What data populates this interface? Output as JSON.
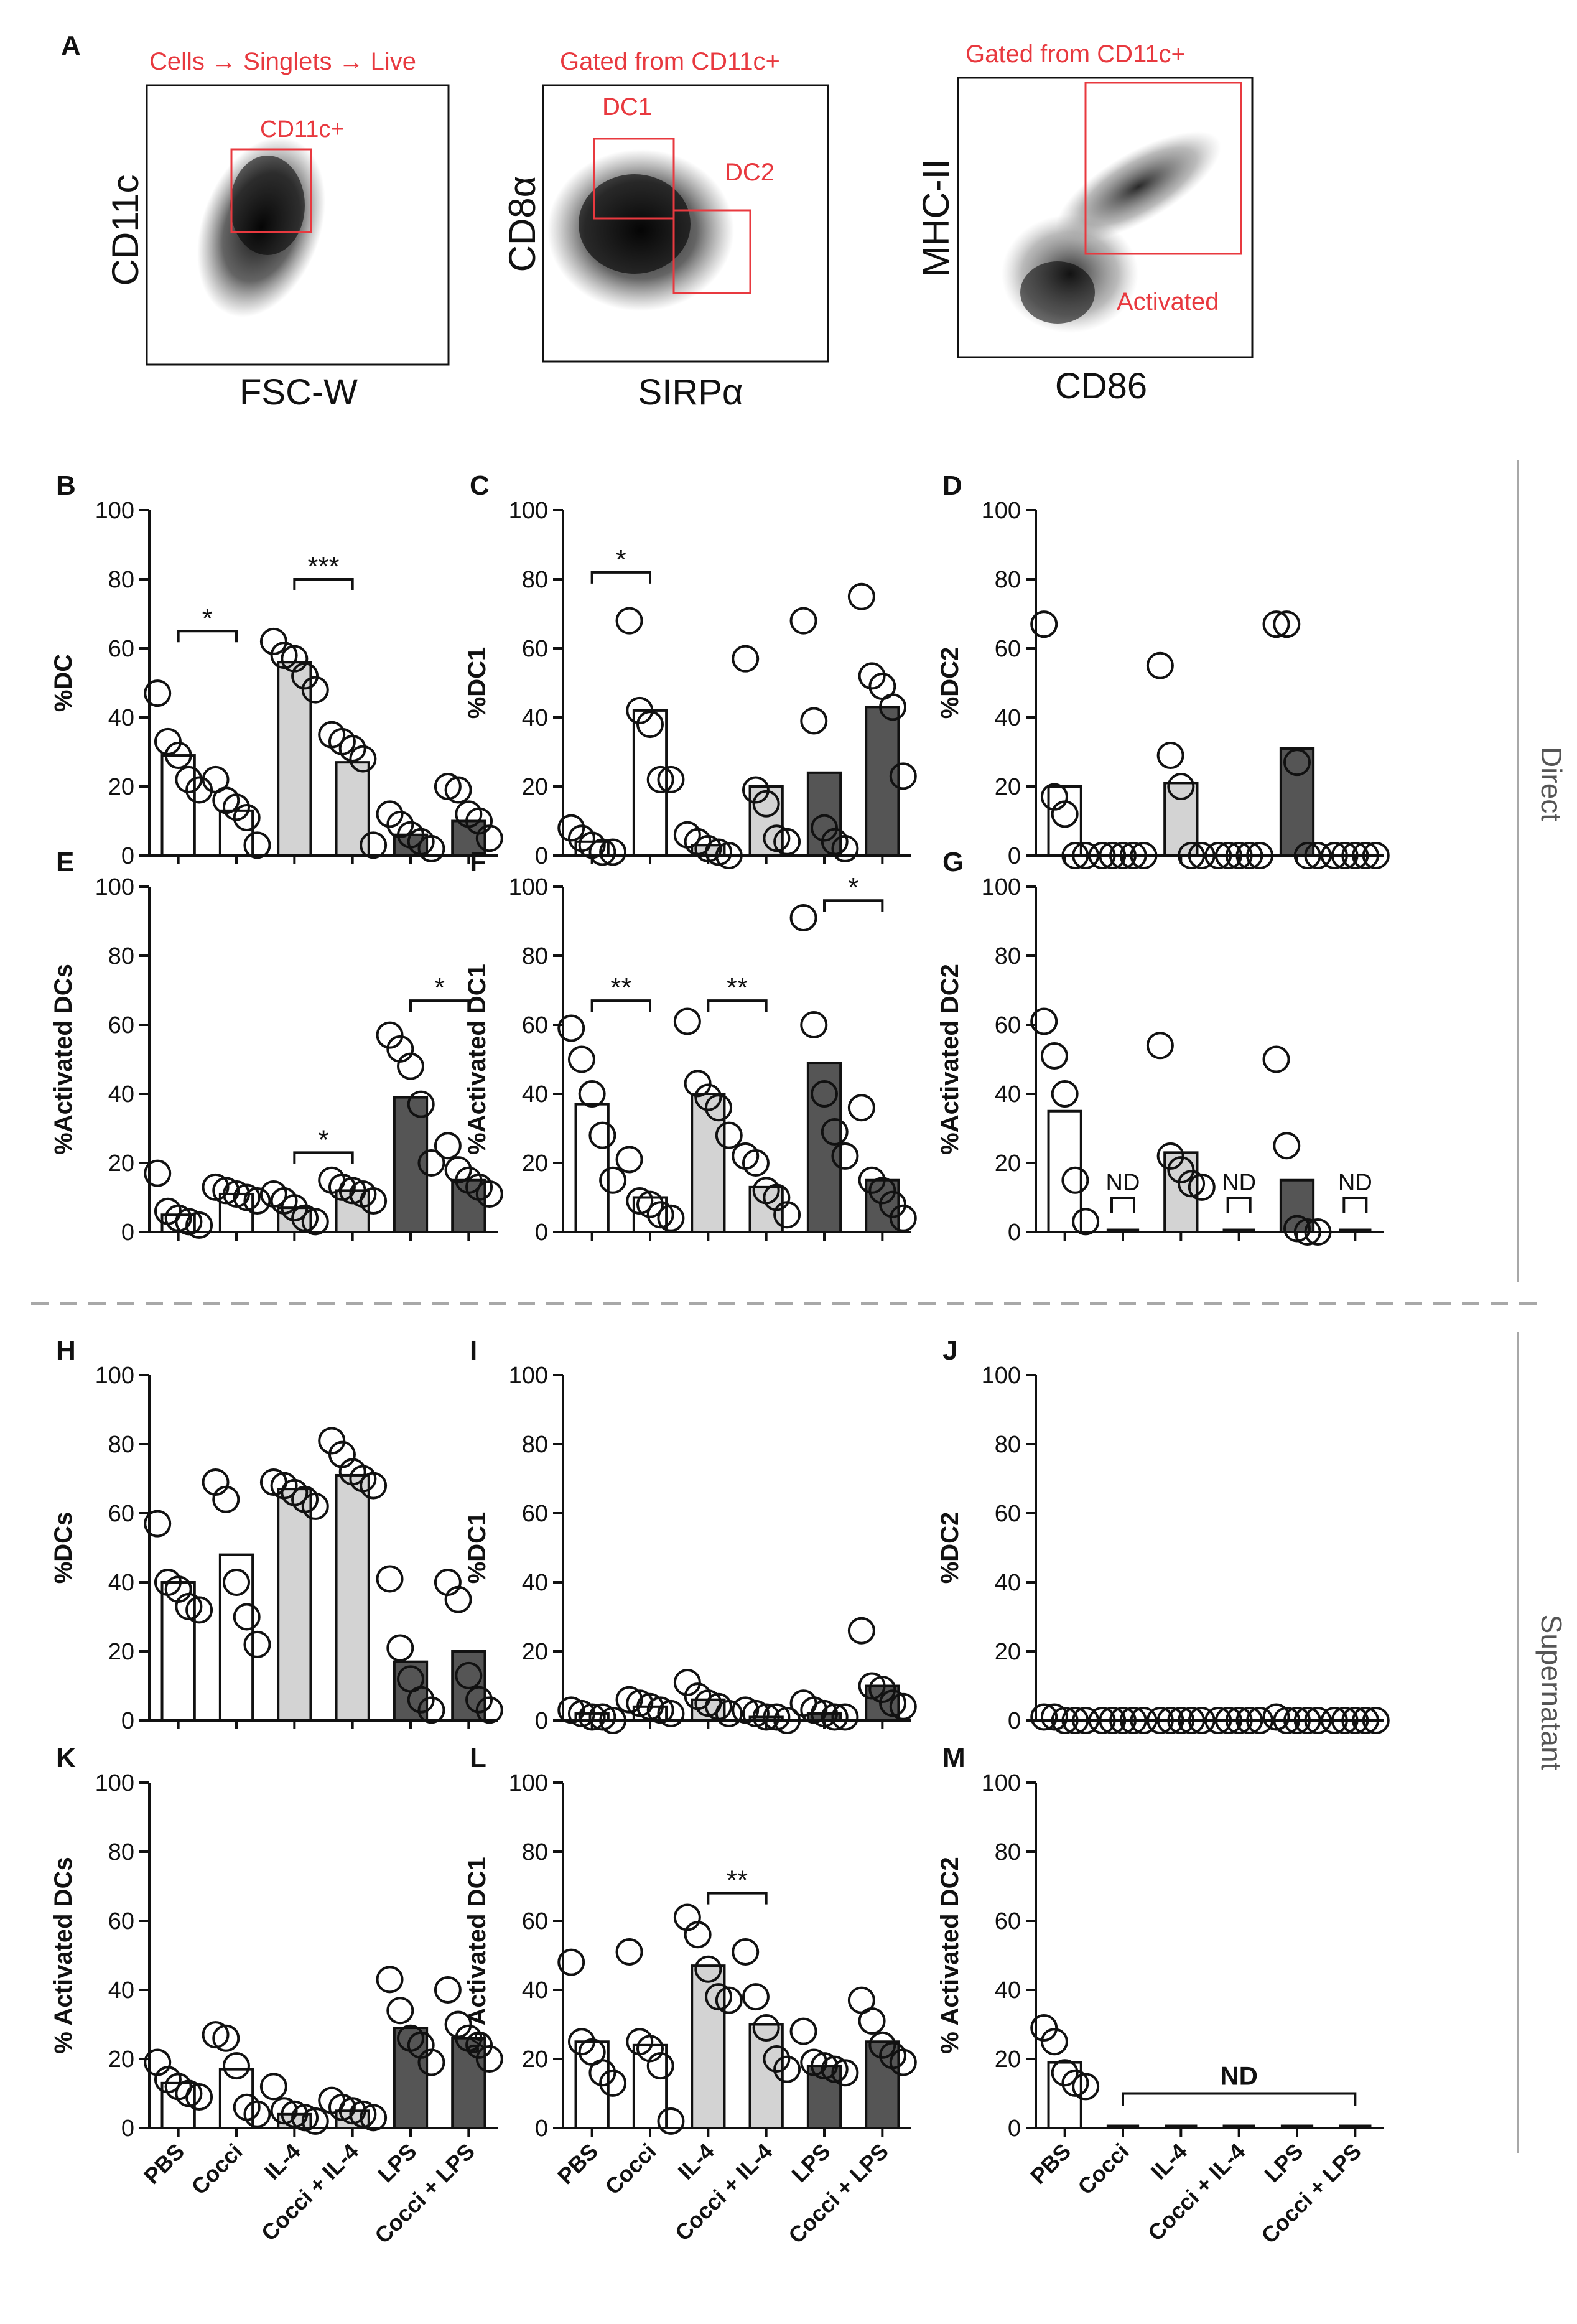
{
  "colors": {
    "accent": "#e8393f",
    "white_bar": "#ffffff",
    "light_bar": "#d3d3d3",
    "dark_bar": "#555555",
    "divider": "#a8a8a8"
  },
  "section_labels": {
    "direct": "Direct",
    "supernatant": "Supernatant"
  },
  "flow_panels": [
    {
      "letter": "A",
      "title": "Cells → Singlets → Live",
      "gate_label": "CD11c+",
      "ylabel": "CD11c",
      "xlabel": "FSC-W"
    },
    {
      "letter": "",
      "title": "Gated from CD11c+",
      "gate_label": "DC1",
      "gate_label_2": "DC2",
      "ylabel": "CD8α",
      "xlabel": "SIRPα"
    },
    {
      "letter": "",
      "title": "Gated from CD11c+",
      "gate_label": "Activated",
      "ylabel": "MHC-II",
      "xlabel": "CD86"
    }
  ],
  "chart_data": [
    {
      "id": "B",
      "type": "bar",
      "ylabel": "%DC",
      "ylim": [
        0,
        100
      ],
      "yticks": [
        0,
        20,
        40,
        60,
        80,
        100
      ],
      "categories": [
        "PBS",
        "Cocci",
        "IL-4",
        "Cocci + IL-4",
        "LPS",
        "Cocci + LPS"
      ],
      "bar_colors": [
        "white",
        "white",
        "light",
        "light",
        "dark",
        "dark"
      ],
      "values": [
        29,
        13,
        56,
        27,
        6,
        10
      ],
      "points": [
        [
          47,
          33,
          29,
          22,
          19
        ],
        [
          22,
          16,
          14,
          11,
          3
        ],
        [
          62,
          58,
          57,
          52,
          48
        ],
        [
          35,
          33,
          31,
          28,
          3
        ],
        [
          12,
          9,
          6,
          4,
          2
        ],
        [
          20,
          19,
          12,
          10,
          5
        ]
      ],
      "brackets": [
        {
          "from": 0,
          "to": 1,
          "y": 65,
          "label": "*"
        },
        {
          "from": 2,
          "to": 3,
          "y": 80,
          "label": "***"
        }
      ],
      "nd": [],
      "show_xlabels": false
    },
    {
      "id": "C",
      "type": "bar",
      "ylabel": "%DC1",
      "ylim": [
        0,
        100
      ],
      "yticks": [
        0,
        20,
        40,
        60,
        80,
        100
      ],
      "categories": [
        "PBS",
        "Cocci",
        "IL-4",
        "Cocci + IL-4",
        "LPS",
        "Cocci + LPS"
      ],
      "bar_colors": [
        "white",
        "white",
        "light",
        "light",
        "dark",
        "dark"
      ],
      "values": [
        4,
        42,
        3,
        20,
        24,
        43
      ],
      "points": [
        [
          8,
          5,
          3,
          1,
          1
        ],
        [
          68,
          42,
          38,
          22,
          22
        ],
        [
          6,
          4,
          2,
          1,
          0
        ],
        [
          57,
          19,
          15,
          5,
          4
        ],
        [
          68,
          39,
          8,
          4,
          2
        ],
        [
          75,
          52,
          49,
          43,
          23
        ]
      ],
      "brackets": [
        {
          "from": 0,
          "to": 1,
          "y": 82,
          "label": "*"
        }
      ],
      "nd": [],
      "show_xlabels": false
    },
    {
      "id": "D",
      "type": "bar",
      "ylabel": "%DC2",
      "ylim": [
        0,
        100
      ],
      "yticks": [
        0,
        20,
        40,
        60,
        80,
        100
      ],
      "categories": [
        "PBS",
        "Cocci",
        "IL-4",
        "Cocci + IL-4",
        "LPS",
        "Cocci + LPS"
      ],
      "bar_colors": [
        "white",
        "white",
        "light",
        "light",
        "dark",
        "dark"
      ],
      "values": [
        20,
        0,
        21,
        0,
        31,
        0
      ],
      "points": [
        [
          67,
          17,
          12,
          0,
          0
        ],
        [
          0,
          0,
          0,
          0,
          0
        ],
        [
          55,
          29,
          20,
          0,
          0
        ],
        [
          0,
          0,
          0,
          0,
          0
        ],
        [
          67,
          67,
          27,
          0,
          0
        ],
        [
          0,
          0,
          0,
          0,
          0
        ]
      ],
      "brackets": [],
      "nd": [],
      "show_xlabels": false
    },
    {
      "id": "E",
      "type": "bar",
      "ylabel": "%Activated DCs",
      "ylim": [
        0,
        100
      ],
      "yticks": [
        0,
        20,
        40,
        60,
        80,
        100
      ],
      "categories": [
        "PBS",
        "Cocci",
        "IL-4",
        "Cocci + IL-4",
        "LPS",
        "Cocci + LPS"
      ],
      "bar_colors": [
        "white",
        "white",
        "light",
        "light",
        "dark",
        "dark"
      ],
      "values": [
        5,
        11,
        7,
        12,
        39,
        15
      ],
      "points": [
        [
          17,
          6,
          4,
          3,
          2
        ],
        [
          13,
          12,
          11,
          10,
          9
        ],
        [
          11,
          9,
          7,
          4,
          3
        ],
        [
          15,
          13,
          12,
          11,
          9
        ],
        [
          57,
          53,
          48,
          37,
          20
        ],
        [
          25,
          18,
          15,
          13,
          11
        ]
      ],
      "brackets": [
        {
          "from": 2,
          "to": 3,
          "y": 23,
          "label": "*"
        },
        {
          "from": 4,
          "to": 5,
          "y": 67,
          "label": "*"
        }
      ],
      "nd": [],
      "show_xlabels": false
    },
    {
      "id": "F",
      "type": "bar",
      "ylabel": "%Activated DC1",
      "ylim": [
        0,
        100
      ],
      "yticks": [
        0,
        20,
        40,
        60,
        80,
        100
      ],
      "categories": [
        "PBS",
        "Cocci",
        "IL-4",
        "Cocci + IL-4",
        "LPS",
        "Cocci + LPS"
      ],
      "bar_colors": [
        "white",
        "white",
        "light",
        "light",
        "dark",
        "dark"
      ],
      "values": [
        37,
        10,
        40,
        13,
        49,
        15
      ],
      "points": [
        [
          59,
          50,
          40,
          28,
          15
        ],
        [
          21,
          9,
          8,
          5,
          4
        ],
        [
          61,
          43,
          39,
          36,
          28
        ],
        [
          22,
          20,
          12,
          10,
          5
        ],
        [
          91,
          60,
          40,
          29,
          22
        ],
        [
          36,
          15,
          12,
          8,
          4
        ]
      ],
      "brackets": [
        {
          "from": 0,
          "to": 1,
          "y": 67,
          "label": "**"
        },
        {
          "from": 2,
          "to": 3,
          "y": 67,
          "label": "**"
        },
        {
          "from": 4,
          "to": 5,
          "y": 96,
          "label": "*"
        }
      ],
      "nd": [],
      "show_xlabels": false
    },
    {
      "id": "G",
      "type": "bar",
      "ylabel": "%Activated DC2",
      "ylim": [
        0,
        100
      ],
      "yticks": [
        0,
        20,
        40,
        60,
        80,
        100
      ],
      "categories": [
        "PBS",
        "Cocci",
        "IL-4",
        "Cocci + IL-4",
        "LPS",
        "Cocci + LPS"
      ],
      "bar_colors": [
        "white",
        "white",
        "light",
        "light",
        "dark",
        "dark"
      ],
      "values": [
        35,
        1,
        23,
        1,
        15,
        1
      ],
      "points": [
        [
          61,
          51,
          40,
          15,
          3
        ],
        [],
        [
          54,
          22,
          18,
          14,
          13
        ],
        [],
        [
          50,
          25,
          1,
          0,
          0
        ],
        []
      ],
      "brackets": [],
      "nd": [
        {
          "group": 1,
          "label": "ND"
        },
        {
          "group": 3,
          "label": "ND"
        },
        {
          "group": 5,
          "label": "ND"
        }
      ],
      "show_xlabels": false
    },
    {
      "id": "H",
      "type": "bar",
      "ylabel": "%DCs",
      "ylim": [
        0,
        100
      ],
      "yticks": [
        0,
        20,
        40,
        60,
        80,
        100
      ],
      "categories": [
        "PBS",
        "Cocci",
        "IL-4",
        "Cocci + IL-4",
        "LPS",
        "Cocci + LPS"
      ],
      "bar_colors": [
        "white",
        "white",
        "light",
        "light",
        "dark",
        "dark"
      ],
      "values": [
        40,
        48,
        67,
        71,
        17,
        20
      ],
      "points": [
        [
          57,
          40,
          38,
          33,
          32
        ],
        [
          69,
          64,
          40,
          30,
          22
        ],
        [
          69,
          68,
          66,
          64,
          62
        ],
        [
          81,
          77,
          72,
          70,
          68
        ],
        [
          41,
          21,
          12,
          6,
          3
        ],
        [
          40,
          35,
          13,
          6,
          3
        ]
      ],
      "brackets": [],
      "nd": [],
      "show_xlabels": false
    },
    {
      "id": "I",
      "type": "bar",
      "ylabel": "%DC1",
      "ylim": [
        0,
        100
      ],
      "yticks": [
        0,
        20,
        40,
        60,
        80,
        100
      ],
      "categories": [
        "PBS",
        "Cocci",
        "IL-4",
        "Cocci + IL-4",
        "LPS",
        "Cocci + LPS"
      ],
      "bar_colors": [
        "white",
        "white",
        "light",
        "light",
        "dark",
        "dark"
      ],
      "values": [
        2,
        4,
        6,
        1,
        2,
        10
      ],
      "points": [
        [
          3,
          2,
          1,
          1,
          0
        ],
        [
          6,
          5,
          4,
          3,
          2
        ],
        [
          11,
          7,
          5,
          4,
          2
        ],
        [
          3,
          2,
          1,
          1,
          0
        ],
        [
          5,
          3,
          2,
          1,
          1
        ],
        [
          26,
          10,
          9,
          5,
          4
        ]
      ],
      "brackets": [],
      "nd": [],
      "show_xlabels": false
    },
    {
      "id": "J",
      "type": "bar",
      "ylabel": "%DC2",
      "ylim": [
        0,
        100
      ],
      "yticks": [
        0,
        20,
        40,
        60,
        80,
        100
      ],
      "categories": [
        "PBS",
        "Cocci",
        "IL-4",
        "Cocci + IL-4",
        "LPS",
        "Cocci + LPS"
      ],
      "bar_colors": [
        "white",
        "white",
        "light",
        "light",
        "dark",
        "dark"
      ],
      "values": [
        0,
        0,
        0,
        0,
        0,
        0
      ],
      "points": [
        [
          1,
          1,
          0,
          0,
          0
        ],
        [
          0,
          0,
          0,
          0,
          0
        ],
        [
          0,
          0,
          0,
          0,
          0
        ],
        [
          0,
          0,
          0,
          0,
          0
        ],
        [
          1,
          0,
          0,
          0,
          0
        ],
        [
          0,
          0,
          0,
          0,
          0
        ]
      ],
      "brackets": [],
      "nd": [],
      "show_xlabels": false
    },
    {
      "id": "K",
      "type": "bar",
      "ylabel": "% Activated DCs",
      "ylim": [
        0,
        100
      ],
      "yticks": [
        0,
        20,
        40,
        60,
        80,
        100
      ],
      "categories": [
        "PBS",
        "Cocci",
        "IL-4",
        "Cocci + IL-4",
        "LPS",
        "Cocci + LPS"
      ],
      "bar_colors": [
        "white",
        "white",
        "light",
        "light",
        "dark",
        "dark"
      ],
      "values": [
        13,
        17,
        4,
        5,
        29,
        26
      ],
      "points": [
        [
          19,
          14,
          12,
          10,
          9
        ],
        [
          27,
          26,
          18,
          6,
          4
        ],
        [
          12,
          5,
          4,
          3,
          2
        ],
        [
          8,
          6,
          5,
          4,
          3
        ],
        [
          43,
          34,
          26,
          24,
          19
        ],
        [
          40,
          30,
          26,
          24,
          20
        ]
      ],
      "brackets": [],
      "nd": [],
      "show_xlabels": true
    },
    {
      "id": "L",
      "type": "bar",
      "ylabel": "% Activated DC1",
      "ylim": [
        0,
        100
      ],
      "yticks": [
        0,
        20,
        40,
        60,
        80,
        100
      ],
      "categories": [
        "PBS",
        "Cocci",
        "IL-4",
        "Cocci + IL-4",
        "LPS",
        "Cocci + LPS"
      ],
      "bar_colors": [
        "white",
        "white",
        "light",
        "light",
        "dark",
        "dark"
      ],
      "values": [
        25,
        24,
        47,
        30,
        18,
        25
      ],
      "points": [
        [
          48,
          25,
          22,
          16,
          13
        ],
        [
          51,
          25,
          23,
          18,
          2
        ],
        [
          61,
          56,
          46,
          38,
          37
        ],
        [
          51,
          38,
          29,
          20,
          17
        ],
        [
          28,
          19,
          18,
          17,
          16
        ],
        [
          37,
          31,
          24,
          21,
          19
        ]
      ],
      "brackets": [
        {
          "from": 2,
          "to": 3,
          "y": 68,
          "label": "**"
        }
      ],
      "nd": [],
      "show_xlabels": true
    },
    {
      "id": "M",
      "type": "bar",
      "ylabel": "% Activated DC2",
      "ylim": [
        0,
        100
      ],
      "yticks": [
        0,
        20,
        40,
        60,
        80,
        100
      ],
      "categories": [
        "PBS",
        "Cocci",
        "IL-4",
        "Cocci + IL-4",
        "LPS",
        "Cocci + LPS"
      ],
      "bar_colors": [
        "white",
        "white",
        "light",
        "light",
        "dark",
        "dark"
      ],
      "values": [
        19,
        1,
        1,
        1,
        1,
        1
      ],
      "points": [
        [
          29,
          25,
          16,
          13,
          12
        ],
        [],
        [],
        [],
        [],
        []
      ],
      "brackets": [],
      "nd": [],
      "nd_group_bracket": {
        "from": 1,
        "to": 5,
        "y": 10,
        "label": "ND"
      },
      "show_xlabels": true
    }
  ]
}
